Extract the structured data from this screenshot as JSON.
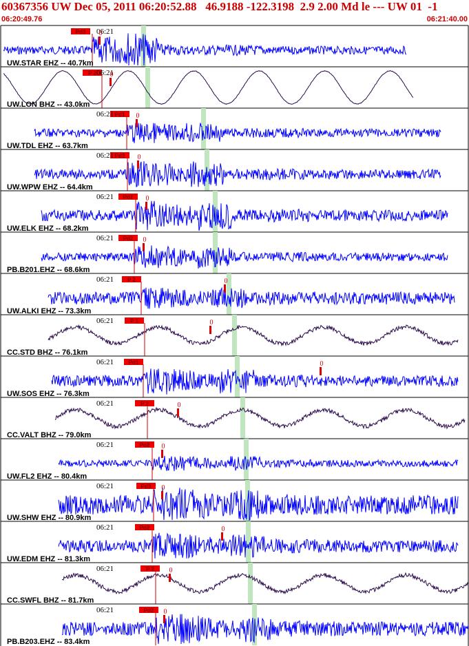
{
  "header": {
    "title": "60367356 UW Dec 05, 2011 06:20:52.88   46.9188 -122.3198  2.9 2.00 Md le --- UW 01  -1",
    "start_time": "06:20:49.76",
    "end_time": "06:21:40.00"
  },
  "time_tick_label": "06:21",
  "colors": {
    "header_text": "#cc0000",
    "ehz_trace": "#0000ff",
    "bhz_trace": "#2a0a4a",
    "pick_flag": "#ee0000",
    "s_marker": "#bfe6bf",
    "border": "#000000"
  },
  "channels": [
    {
      "label": "UW.STAR EHZ -- 40.7km",
      "type": "EHZ",
      "phase": "Pd3"
    },
    {
      "label": "UW.LON BHZ -- 43.0km",
      "type": "BHZ",
      "phase": "P 2"
    },
    {
      "label": "UW.TDL EHZ -- 63.7km",
      "type": "EHZ",
      "phase": "Pd1"
    },
    {
      "label": "UW.WPW EHZ -- 64.4km",
      "type": "EHZ",
      "phase": "Pd2"
    },
    {
      "label": "UW.ELK EHZ -- 68.2km",
      "type": "EHZ",
      "phase": "Pd2"
    },
    {
      "label": "PB.B201.EHZ -- 68.6km",
      "type": "EHZ",
      "phase": "Pd2"
    },
    {
      "label": "UW.ALKI EHZ -- 73.3km",
      "type": "EHZ",
      "phase": "P 2"
    },
    {
      "label": "CC.STD BHZ -- 76.1km",
      "type": "BHZ",
      "phase": "P 1"
    },
    {
      "label": "UW.SOS EHZ -- 76.3km",
      "type": "EHZ",
      "phase": "Pd1"
    },
    {
      "label": "CC.VALT BHZ -- 79.0km",
      "type": "BHZ",
      "phase": "P 2"
    },
    {
      "label": "UW.FL2 EHZ -- 80.4km",
      "type": "EHZ",
      "phase": "Pd2"
    },
    {
      "label": "UW.SHW EHZ -- 80.9km",
      "type": "EHZ",
      "phase": "Pd3"
    },
    {
      "label": "UW.EDM EHZ -- 81.3km",
      "type": "EHZ",
      "phase": "Pd2"
    },
    {
      "label": "CC.SWFL BHZ -- 81.7km",
      "type": "BHZ",
      "phase": "P 2"
    },
    {
      "label": "PB.B203.EHZ -- 83.4km",
      "type": "EHZ",
      "phase": "Pd2"
    }
  ],
  "coda_marker_label": "0"
}
